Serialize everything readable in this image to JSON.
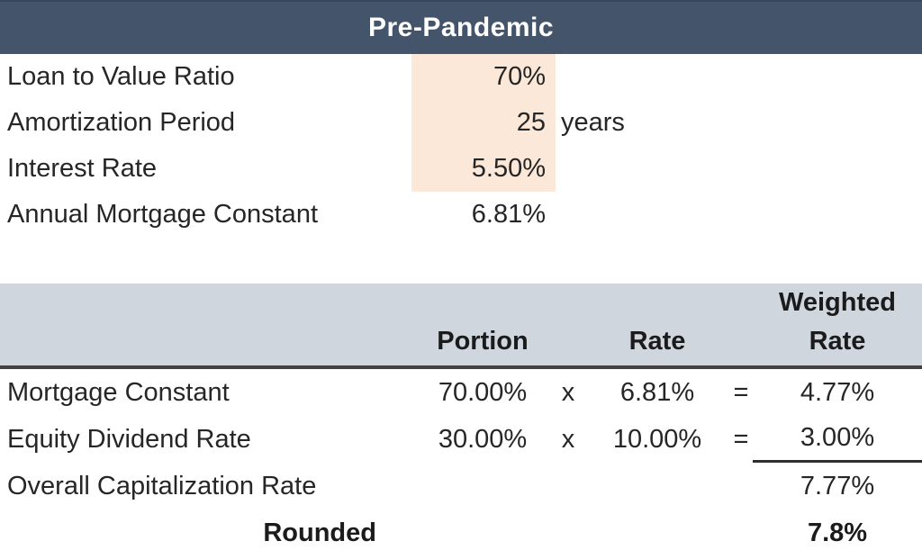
{
  "title": "Pre-Pandemic",
  "assumptions": {
    "rows": [
      {
        "label": "Loan to Value Ratio",
        "value": "70%",
        "suffix": "",
        "highlighted": true
      },
      {
        "label": "Amortization Period",
        "value": "25",
        "suffix": "years",
        "highlighted": true
      },
      {
        "label": "Interest Rate",
        "value": "5.50%",
        "suffix": "",
        "highlighted": true
      },
      {
        "label": "Annual Mortgage Constant",
        "value": "6.81%",
        "suffix": "",
        "highlighted": false
      }
    ]
  },
  "weighted_table": {
    "col_portion": "Portion",
    "col_rate": "Rate",
    "col_weighted_line1": "Weighted",
    "col_weighted_line2": "Rate",
    "rows": [
      {
        "label": "Mortgage Constant",
        "portion": "70.00%",
        "op1": "x",
        "rate": "6.81%",
        "op2": "=",
        "weighted": "4.77%"
      },
      {
        "label": "Equity Dividend Rate",
        "portion": "30.00%",
        "op1": "x",
        "rate": "10.00%",
        "op2": "=",
        "weighted": "3.00%"
      }
    ],
    "total_label": "Overall Capitalization Rate",
    "total_value": "7.77%",
    "rounded_label": "Rounded",
    "rounded_value": "7.8%"
  },
  "colors": {
    "header_bg": "#44546A",
    "input_highlight": "#FBE8D8",
    "band_bg": "#D0D6DE",
    "rule_dark": "#414141",
    "sum_line": "#2E2E2E",
    "text": "#262626"
  }
}
